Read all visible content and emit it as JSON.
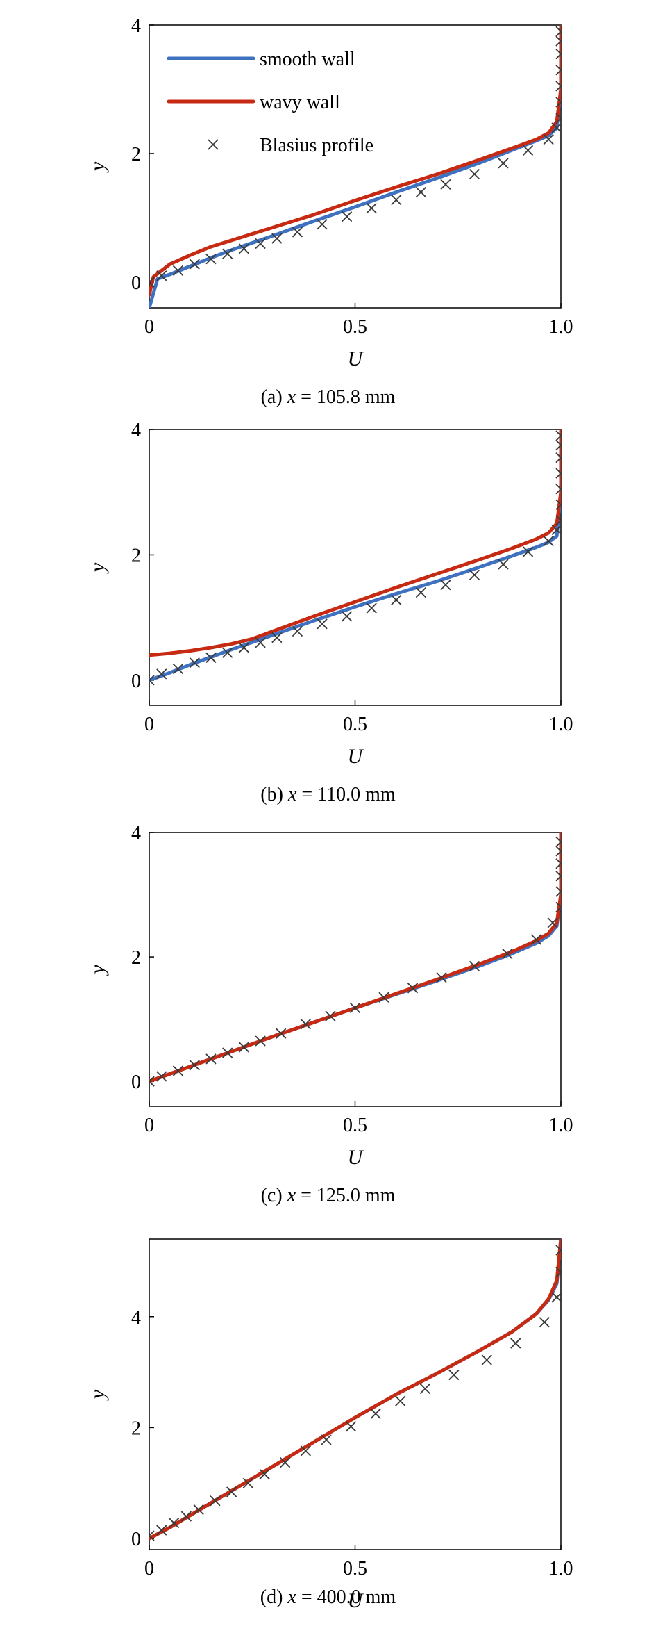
{
  "figure": {
    "colors": {
      "smooth": "#3f71c1",
      "wavy": "#c62a12",
      "blasius": "#3a3a3a",
      "frame": "#000000"
    }
  },
  "legend": {
    "items": [
      {
        "label": "smooth wall",
        "kind": "line",
        "color": "#3f71c1"
      },
      {
        "label": "wavy wall",
        "kind": "line",
        "color": "#c62a12"
      },
      {
        "label": "Blasius profile",
        "kind": "marker",
        "color": "#3a3a3a"
      }
    ]
  },
  "chart_data": [
    {
      "type": "line",
      "caption_prefix": "(a) ",
      "caption_var": "x",
      "caption_rest": " = 105.8 mm",
      "xlabel": "U",
      "ylabel": "y",
      "xlim": [
        0,
        1.0
      ],
      "ylim": [
        -0.4,
        4
      ],
      "xticks": [
        "0",
        "0.5",
        "1.0"
      ],
      "yticks": [
        "0",
        "2",
        "4"
      ],
      "legend": "top-left",
      "grid": false,
      "series": [
        {
          "name": "smooth wall",
          "style": "line",
          "color": "#3f71c1",
          "x": [
            0,
            0.02,
            0.05,
            0.1,
            0.15,
            0.2,
            0.3,
            0.4,
            0.5,
            0.6,
            0.7,
            0.8,
            0.88,
            0.94,
            0.97,
            0.99,
            1.0,
            1.0
          ],
          "y": [
            -0.4,
            0.05,
            0.12,
            0.25,
            0.38,
            0.5,
            0.72,
            0.95,
            1.17,
            1.4,
            1.62,
            1.85,
            2.05,
            2.2,
            2.28,
            2.4,
            3.0,
            4.0
          ]
        },
        {
          "name": "wavy wall",
          "style": "line",
          "color": "#c62a12",
          "x": [
            0,
            0.01,
            0.05,
            0.1,
            0.15,
            0.2,
            0.3,
            0.4,
            0.5,
            0.6,
            0.7,
            0.8,
            0.88,
            0.94,
            0.97,
            0.99,
            1.0,
            1.0
          ],
          "y": [
            -0.2,
            0.08,
            0.28,
            0.42,
            0.55,
            0.65,
            0.85,
            1.05,
            1.27,
            1.48,
            1.68,
            1.9,
            2.08,
            2.22,
            2.32,
            2.5,
            3.0,
            4.0
          ]
        },
        {
          "name": "Blasius profile",
          "style": "marker",
          "color": "#3a3a3a",
          "x": [
            0,
            0.03,
            0.07,
            0.11,
            0.15,
            0.19,
            0.23,
            0.27,
            0.31,
            0.36,
            0.42,
            0.48,
            0.54,
            0.6,
            0.66,
            0.72,
            0.79,
            0.86,
            0.92,
            0.97,
            0.99,
            1.0,
            1.0,
            1.0,
            1.0,
            1.0,
            1.0,
            1.0
          ],
          "y": [
            0,
            0.1,
            0.18,
            0.28,
            0.36,
            0.44,
            0.52,
            0.6,
            0.68,
            0.78,
            0.9,
            1.02,
            1.15,
            1.28,
            1.4,
            1.52,
            1.68,
            1.85,
            2.05,
            2.22,
            2.4,
            2.55,
            2.8,
            3.05,
            3.3,
            3.55,
            3.75,
            3.9
          ]
        }
      ]
    },
    {
      "type": "line",
      "caption_prefix": "(b) ",
      "caption_var": "x",
      "caption_rest": " = 110.0 mm",
      "xlabel": "U",
      "ylabel": "y",
      "xlim": [
        0,
        1.0
      ],
      "ylim": [
        -0.4,
        4
      ],
      "xticks": [
        "0",
        "0.5",
        "1.0"
      ],
      "yticks": [
        "0",
        "2",
        "4"
      ],
      "grid": false,
      "series": [
        {
          "name": "smooth wall",
          "style": "line",
          "color": "#3f71c1",
          "x": [
            0,
            0.05,
            0.1,
            0.15,
            0.2,
            0.3,
            0.4,
            0.5,
            0.6,
            0.7,
            0.8,
            0.88,
            0.94,
            0.97,
            0.99,
            1.0,
            1.0
          ],
          "y": [
            0,
            0.12,
            0.25,
            0.37,
            0.49,
            0.72,
            0.95,
            1.17,
            1.38,
            1.58,
            1.8,
            1.98,
            2.12,
            2.2,
            2.3,
            3.0,
            4.0
          ]
        },
        {
          "name": "wavy wall",
          "style": "line",
          "color": "#c62a12",
          "x": [
            0,
            0.05,
            0.1,
            0.15,
            0.2,
            0.25,
            0.3,
            0.35,
            0.4,
            0.5,
            0.6,
            0.7,
            0.8,
            0.88,
            0.94,
            0.97,
            0.99,
            1.0,
            1.0
          ],
          "y": [
            0.4,
            0.43,
            0.47,
            0.52,
            0.58,
            0.66,
            0.78,
            0.9,
            1.02,
            1.25,
            1.48,
            1.7,
            1.92,
            2.1,
            2.25,
            2.35,
            2.5,
            3.0,
            4.0
          ]
        },
        {
          "name": "Blasius profile",
          "style": "marker",
          "color": "#3a3a3a",
          "x": [
            0,
            0.03,
            0.07,
            0.11,
            0.15,
            0.19,
            0.23,
            0.27,
            0.31,
            0.36,
            0.42,
            0.48,
            0.54,
            0.6,
            0.66,
            0.72,
            0.79,
            0.86,
            0.92,
            0.97,
            0.99,
            1.0,
            1.0,
            1.0,
            1.0,
            1.0,
            1.0,
            1.0
          ],
          "y": [
            0,
            0.1,
            0.18,
            0.28,
            0.36,
            0.44,
            0.52,
            0.6,
            0.68,
            0.78,
            0.9,
            1.02,
            1.15,
            1.28,
            1.4,
            1.52,
            1.68,
            1.85,
            2.05,
            2.22,
            2.4,
            2.55,
            2.8,
            3.05,
            3.3,
            3.55,
            3.75,
            3.9
          ]
        }
      ]
    },
    {
      "type": "line",
      "caption_prefix": "(c) ",
      "caption_var": "x",
      "caption_rest": " = 125.0 mm",
      "xlabel": "U",
      "ylabel": "y",
      "xlim": [
        0,
        1.0
      ],
      "ylim": [
        -0.4,
        4
      ],
      "xticks": [
        "0",
        "0.5",
        "1.0"
      ],
      "yticks": [
        "0",
        "2",
        "4"
      ],
      "grid": false,
      "series": [
        {
          "name": "smooth wall",
          "style": "line",
          "color": "#3f71c1",
          "x": [
            0,
            0.05,
            0.1,
            0.15,
            0.2,
            0.3,
            0.4,
            0.5,
            0.6,
            0.7,
            0.8,
            0.88,
            0.94,
            0.97,
            0.99,
            1.0,
            1.0
          ],
          "y": [
            0,
            0.12,
            0.24,
            0.36,
            0.48,
            0.72,
            0.95,
            1.18,
            1.4,
            1.62,
            1.85,
            2.05,
            2.22,
            2.34,
            2.5,
            3.0,
            4.0
          ]
        },
        {
          "name": "wavy wall",
          "style": "line",
          "color": "#c62a12",
          "x": [
            0,
            0.05,
            0.1,
            0.15,
            0.2,
            0.3,
            0.4,
            0.5,
            0.6,
            0.7,
            0.8,
            0.88,
            0.94,
            0.97,
            0.99,
            1.0,
            1.0
          ],
          "y": [
            0,
            0.12,
            0.24,
            0.36,
            0.48,
            0.72,
            0.95,
            1.18,
            1.41,
            1.64,
            1.88,
            2.08,
            2.26,
            2.38,
            2.55,
            3.0,
            4.0
          ]
        },
        {
          "name": "Blasius profile",
          "style": "marker",
          "color": "#3a3a3a",
          "x": [
            0,
            0.03,
            0.07,
            0.11,
            0.15,
            0.19,
            0.23,
            0.27,
            0.32,
            0.38,
            0.44,
            0.5,
            0.57,
            0.64,
            0.71,
            0.79,
            0.87,
            0.94,
            0.98,
            1.0,
            1.0,
            1.0,
            1.0,
            1.0,
            1.0
          ],
          "y": [
            0,
            0.08,
            0.17,
            0.26,
            0.36,
            0.46,
            0.55,
            0.65,
            0.77,
            0.92,
            1.05,
            1.18,
            1.35,
            1.5,
            1.67,
            1.85,
            2.05,
            2.28,
            2.55,
            2.8,
            3.05,
            3.3,
            3.5,
            3.7,
            3.85
          ]
        }
      ]
    },
    {
      "type": "line",
      "caption_prefix": "(d) ",
      "caption_var": "x",
      "caption_rest": " = 400.0 mm",
      "xlabel": "U",
      "ylabel": "y",
      "xlim": [
        0,
        1.0
      ],
      "ylim": [
        -0.2,
        5.4
      ],
      "xticks": [
        "0",
        "0.5",
        "1.0"
      ],
      "yticks": [
        "0",
        "2",
        "4"
      ],
      "grid": false,
      "series": [
        {
          "name": "smooth wall",
          "style": "line",
          "color": "#3f71c1",
          "x": [
            0,
            0.05,
            0.1,
            0.15,
            0.2,
            0.3,
            0.4,
            0.5,
            0.6,
            0.7,
            0.8,
            0.88,
            0.94,
            0.97,
            0.99,
            1.0
          ],
          "y": [
            0,
            0.2,
            0.42,
            0.64,
            0.86,
            1.3,
            1.74,
            2.18,
            2.6,
            2.98,
            3.38,
            3.72,
            4.05,
            4.3,
            4.6,
            5.4
          ]
        },
        {
          "name": "wavy wall",
          "style": "line",
          "color": "#c62a12",
          "x": [
            0,
            0.05,
            0.1,
            0.15,
            0.2,
            0.3,
            0.4,
            0.5,
            0.6,
            0.7,
            0.8,
            0.88,
            0.94,
            0.97,
            0.99,
            1.0
          ],
          "y": [
            0,
            0.2,
            0.42,
            0.64,
            0.86,
            1.3,
            1.74,
            2.18,
            2.6,
            2.98,
            3.38,
            3.72,
            4.05,
            4.32,
            4.65,
            5.4
          ]
        },
        {
          "name": "Blasius profile",
          "style": "marker",
          "color": "#3a3a3a",
          "x": [
            0,
            0.03,
            0.06,
            0.09,
            0.12,
            0.16,
            0.2,
            0.24,
            0.28,
            0.33,
            0.38,
            0.43,
            0.49,
            0.55,
            0.61,
            0.67,
            0.74,
            0.82,
            0.89,
            0.96,
            0.99,
            1.0,
            1.0
          ],
          "y": [
            0.05,
            0.15,
            0.28,
            0.4,
            0.52,
            0.68,
            0.84,
            1.0,
            1.16,
            1.37,
            1.58,
            1.78,
            2.02,
            2.25,
            2.48,
            2.7,
            2.95,
            3.22,
            3.52,
            3.9,
            4.35,
            4.8,
            5.2
          ]
        }
      ]
    }
  ]
}
